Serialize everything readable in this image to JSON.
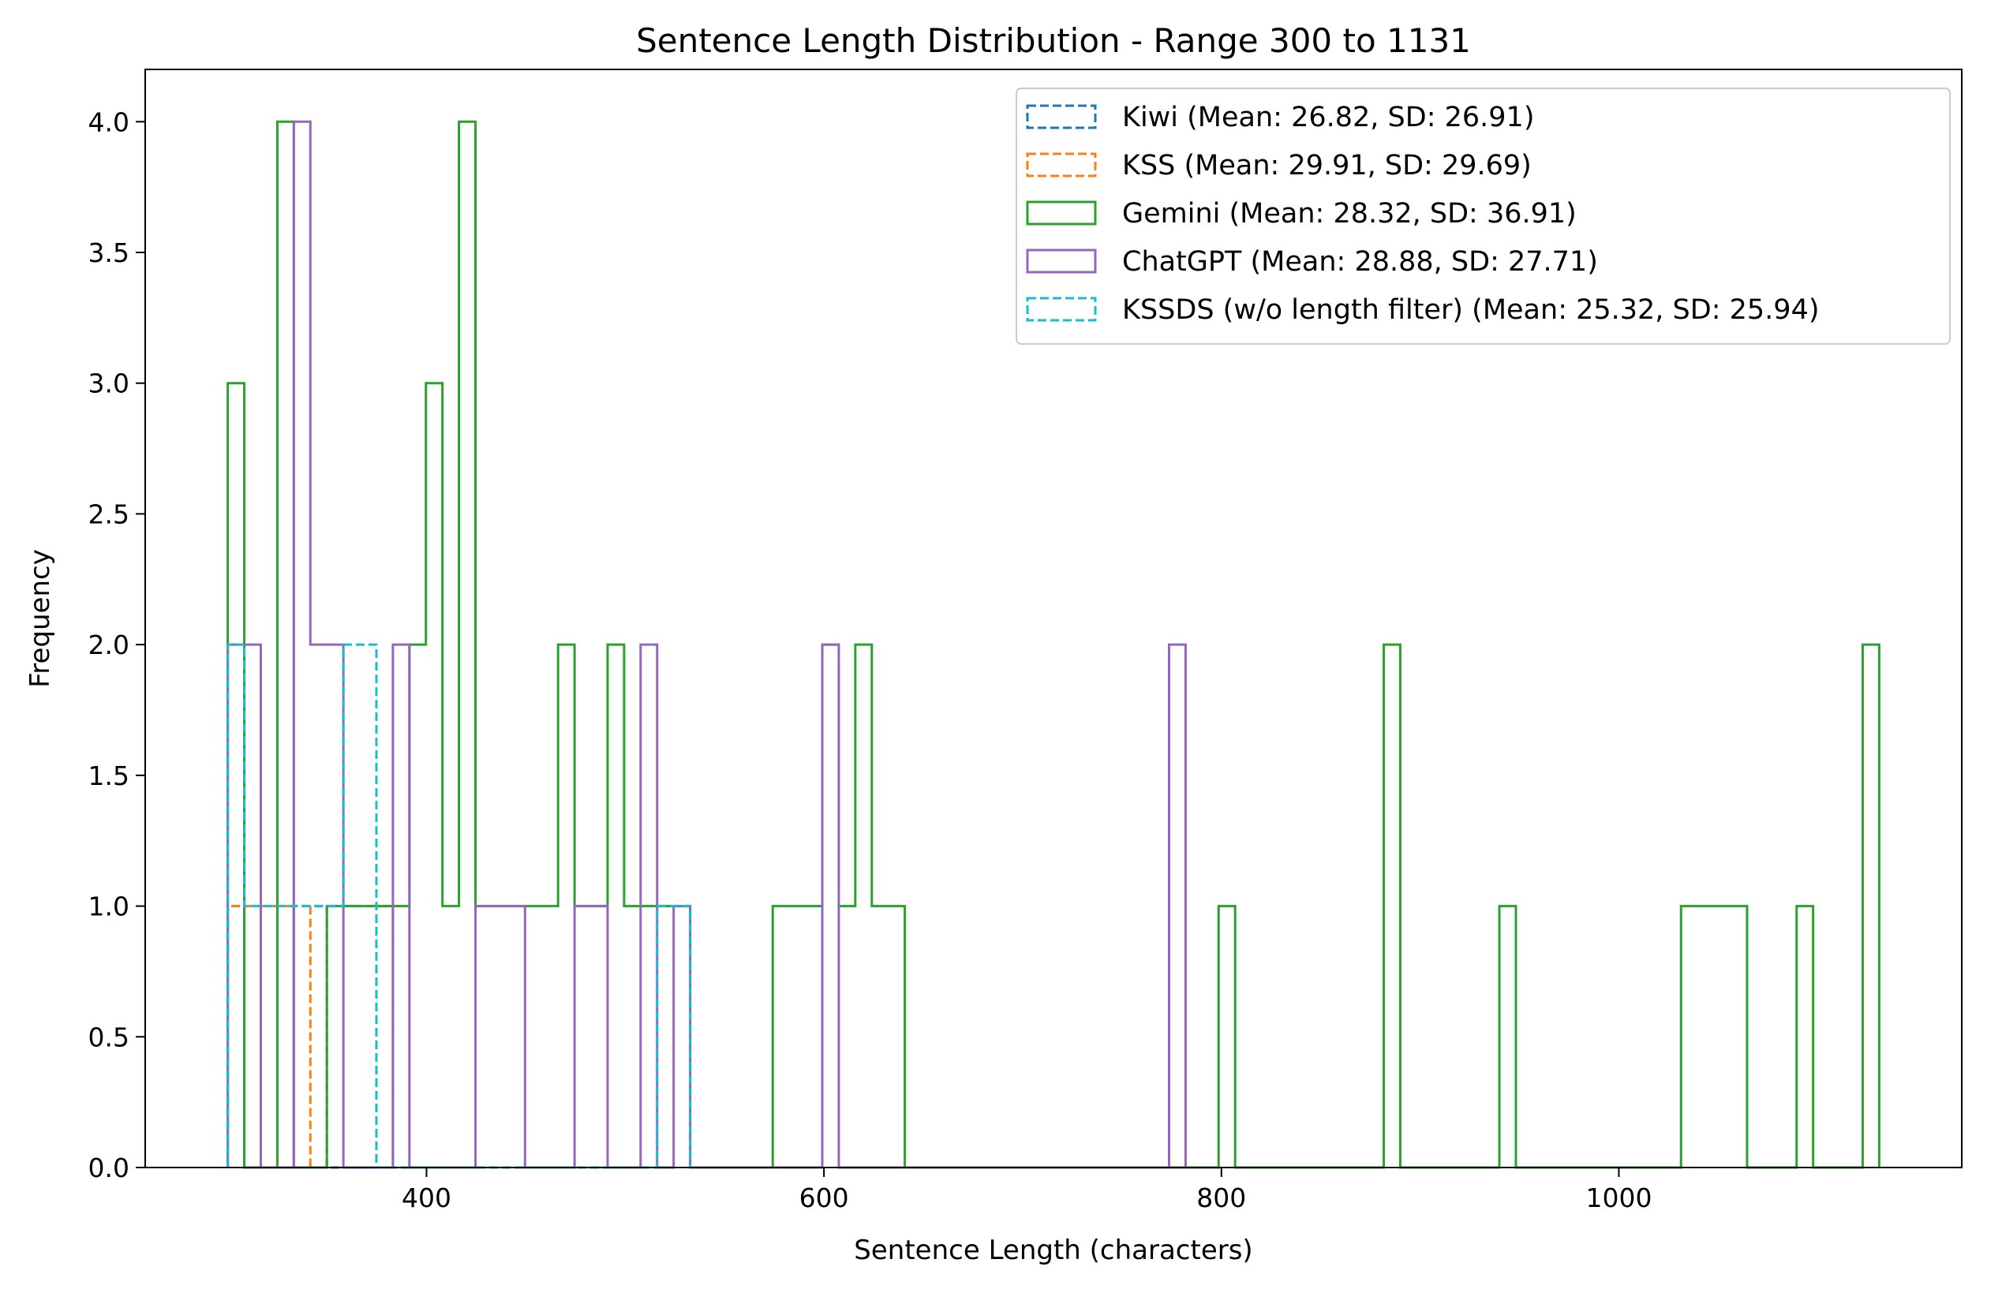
{
  "chart_data": {
    "type": "histogram",
    "title": "Sentence Length Distribution - Range 300 to 1131",
    "xlabel": "Sentence Length (characters)",
    "ylabel": "Frequency",
    "xlim": [
      258.45,
      1172.55
    ],
    "ylim": [
      0,
      4.2
    ],
    "xticks": [
      400,
      600,
      800,
      1000
    ],
    "yticks": [
      0,
      0.5,
      1,
      1.5,
      2,
      2.5,
      3,
      3.5,
      4
    ],
    "ytick_labels": [
      "0.0",
      "0.5",
      "1.0",
      "1.5",
      "2.0",
      "2.5",
      "3.0",
      "3.5",
      "4.0"
    ],
    "bin_start": 300,
    "bin_width": 8.31,
    "histtype": "step",
    "grid": false,
    "legend_position": "top-right",
    "series": [
      {
        "name": "Kiwi (Mean: 26.82, SD: 26.91)",
        "color": "#1f77b4",
        "dashed": true,
        "bins": {
          "0": 1,
          "4": 1,
          "5": 1,
          "9": 1
        }
      },
      {
        "name": "KSS (Mean: 29.91, SD: 29.69)",
        "color": "#ff7f0e",
        "dashed": true,
        "bins": {
          "0": 1,
          "1": 1,
          "2": 1,
          "3": 1,
          "5": 1,
          "6": 1,
          "7": 1,
          "8": 1,
          "9": 1
        }
      },
      {
        "name": "Gemini (Mean: 28.32, SD: 36.91)",
        "color": "#2ca02c",
        "dashed": false,
        "bins": {
          "0": 3,
          "3": 4,
          "6": 1,
          "7": 1,
          "8": 1,
          "9": 1,
          "10": 1,
          "11": 2,
          "12": 3,
          "13": 1,
          "14": 4,
          "15": 1,
          "16": 1,
          "17": 1,
          "18": 1,
          "19": 1,
          "20": 2,
          "21": 1,
          "22": 1,
          "23": 2,
          "24": 1,
          "25": 1,
          "26": 1,
          "27": 1,
          "33": 1,
          "34": 1,
          "35": 1,
          "36": 2,
          "37": 1,
          "38": 2,
          "39": 1,
          "40": 1,
          "60": 1,
          "70": 2,
          "77": 1,
          "88": 1,
          "89": 1,
          "90": 1,
          "91": 1,
          "95": 1,
          "99": 2
        }
      },
      {
        "name": "ChatGPT (Mean: 28.88, SD: 27.71)",
        "color": "#9467bd",
        "dashed": false,
        "bins": {
          "0": 2,
          "1": 2,
          "4": 4,
          "5": 2,
          "6": 2,
          "10": 2,
          "15": 1,
          "16": 1,
          "17": 1,
          "21": 1,
          "22": 1,
          "25": 2,
          "27": 1,
          "36": 2,
          "57": 2
        }
      },
      {
        "name": "KSSDS (w/o length filter) (Mean: 25.32, SD: 25.94)",
        "color": "#17becf",
        "dashed": true,
        "bins": {
          "0": 2,
          "1": 1,
          "2": 1,
          "3": 1,
          "4": 1,
          "5": 1,
          "6": 1,
          "7": 2,
          "8": 2,
          "26": 1,
          "27": 1
        }
      }
    ]
  }
}
